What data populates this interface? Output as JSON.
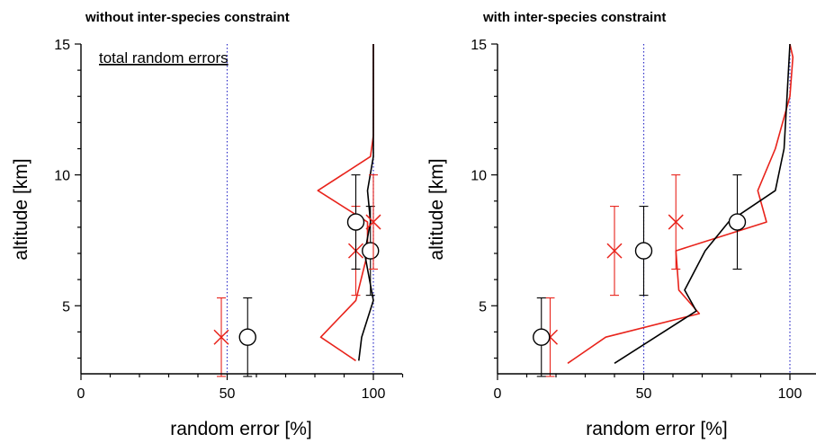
{
  "chart_data": [
    {
      "type": "line",
      "title": "without inter-species constraint",
      "annotation": "total random errors",
      "xlabel": "random error [%]",
      "ylabel": "altitude [km]",
      "xlim": [
        0,
        110
      ],
      "ylim": [
        2.4,
        15
      ],
      "xticks": [
        0,
        50,
        100
      ],
      "yticks": [
        5,
        10,
        15
      ],
      "reference_lines_x": [
        50,
        100
      ],
      "colors": {
        "black": "#000000",
        "red": "#e8231b",
        "reference": "#3030c8"
      },
      "lines": [
        {
          "color": "red",
          "points": [
            [
              94,
              2.9
            ],
            [
              82,
              3.8
            ],
            [
              94,
              5.2
            ],
            [
              98,
              7.0
            ],
            [
              98,
              8.2
            ],
            [
              81,
              9.4
            ],
            [
              99,
              10.7
            ],
            [
              100,
              11.5
            ],
            [
              100,
              15
            ]
          ]
        },
        {
          "color": "black",
          "points": [
            [
              95,
              2.9
            ],
            [
              96,
              3.8
            ],
            [
              100,
              5.2
            ],
            [
              97,
              7.0
            ],
            [
              99,
              8.2
            ],
            [
              98,
              9.4
            ],
            [
              100,
              10.7
            ],
            [
              100,
              11.5
            ],
            [
              100,
              15
            ]
          ]
        }
      ],
      "error_points": [
        {
          "color": "red",
          "marker": "x",
          "x": 48,
          "y": 3.8,
          "ylo": 2.3,
          "yhi": 5.3
        },
        {
          "color": "black",
          "marker": "o",
          "x": 57,
          "y": 3.8,
          "ylo": 2.3,
          "yhi": 5.3
        },
        {
          "color": "red",
          "marker": "x",
          "x": 94,
          "y": 7.1,
          "ylo": 5.4,
          "yhi": 8.8
        },
        {
          "color": "black",
          "marker": "o",
          "x": 99,
          "y": 7.1,
          "ylo": 5.4,
          "yhi": 8.8
        },
        {
          "color": "red",
          "marker": "x",
          "x": 100,
          "y": 8.2,
          "ylo": 6.4,
          "yhi": 10.0
        },
        {
          "color": "black",
          "marker": "o",
          "x": 94,
          "y": 8.2,
          "ylo": 6.4,
          "yhi": 10.0
        }
      ]
    },
    {
      "type": "line",
      "title": "with inter-species constraint",
      "xlabel": "random error [%]",
      "ylabel": "altitude [km]",
      "xlim": [
        0,
        110
      ],
      "ylim": [
        2.4,
        15
      ],
      "xticks": [
        0,
        50,
        100
      ],
      "yticks": [
        5,
        10,
        15
      ],
      "reference_lines_x": [
        50,
        100
      ],
      "colors": {
        "black": "#000000",
        "red": "#e8231b",
        "reference": "#3030c8"
      },
      "lines": [
        {
          "color": "red",
          "points": [
            [
              24,
              2.8
            ],
            [
              37,
              3.8
            ],
            [
              69,
              4.7
            ],
            [
              62,
              5.6
            ],
            [
              61,
              7.1
            ],
            [
              92,
              8.2
            ],
            [
              89,
              9.4
            ],
            [
              95,
              11.0
            ],
            [
              100,
              13.0
            ],
            [
              101,
              14.5
            ],
            [
              100,
              15
            ]
          ]
        },
        {
          "color": "black",
          "points": [
            [
              40,
              2.8
            ],
            [
              68,
              4.8
            ],
            [
              64,
              5.6
            ],
            [
              71,
              7.1
            ],
            [
              79,
              8.2
            ],
            [
              95,
              9.4
            ],
            [
              98,
              11.0
            ],
            [
              99,
              13.0
            ],
            [
              100,
              15
            ]
          ]
        }
      ],
      "error_points": [
        {
          "color": "red",
          "marker": "x",
          "x": 18,
          "y": 3.8,
          "ylo": 2.3,
          "yhi": 5.3
        },
        {
          "color": "black",
          "marker": "o",
          "x": 15,
          "y": 3.8,
          "ylo": 2.3,
          "yhi": 5.3
        },
        {
          "color": "red",
          "marker": "x",
          "x": 40,
          "y": 7.1,
          "ylo": 5.4,
          "yhi": 8.8
        },
        {
          "color": "black",
          "marker": "o",
          "x": 50,
          "y": 7.1,
          "ylo": 5.4,
          "yhi": 8.8
        },
        {
          "color": "red",
          "marker": "x",
          "x": 61,
          "y": 8.2,
          "ylo": 6.4,
          "yhi": 10.0
        },
        {
          "color": "black",
          "marker": "o",
          "x": 82,
          "y": 8.2,
          "ylo": 6.4,
          "yhi": 10.0
        }
      ]
    }
  ]
}
